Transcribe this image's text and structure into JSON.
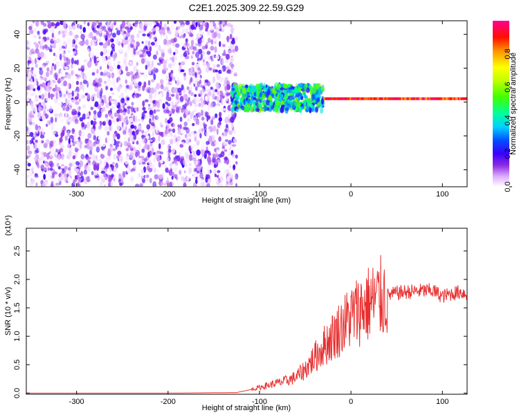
{
  "title": "C2E1.2025.309.22.59.G29",
  "chart_data": [
    {
      "type": "heatmap",
      "xlabel": "Height of straight line (km)",
      "ylabel": "Frequency (Hz)",
      "xlim": [
        -355,
        127
      ],
      "ylim": [
        -50,
        48
      ],
      "x_ticks": [
        -300,
        -200,
        -100,
        0,
        100
      ],
      "y_ticks": [
        -40,
        -20,
        0,
        20,
        40
      ],
      "x_tick_labels": [
        "-300",
        "-200",
        "-100",
        "0",
        "100"
      ],
      "y_tick_labels": [
        "-40",
        "-20",
        "0",
        "20",
        "40"
      ],
      "colorbar": {
        "label": "Normalized spectral amplitude",
        "range": [
          0.0,
          1.0
        ],
        "ticks": [
          0.0,
          0.2,
          0.4,
          0.6,
          0.8
        ],
        "tick_labels": [
          "0.0",
          "0.2",
          "0.4",
          "0.6",
          "0.8"
        ],
        "colors": [
          "#ffffff",
          "#c060ff",
          "#6a00e0",
          "#0000ff",
          "#00d0ff",
          "#00ff80",
          "#80ff00",
          "#ffff00",
          "#ff8000",
          "#ff0000",
          "#ff0080"
        ]
      },
      "regions": [
        {
          "x_range": [
            -355,
            -125
          ],
          "y_range": [
            -50,
            48
          ],
          "amplitude": [
            0.0,
            0.2
          ],
          "description": "noise"
        },
        {
          "x_range": [
            -130,
            -30
          ],
          "y_range": [
            -5,
            10
          ],
          "amplitude": [
            0.2,
            0.6
          ]
        },
        {
          "x_range": [
            -30,
            127
          ],
          "y_center": 2,
          "amplitude": [
            0.8,
            1.0
          ]
        }
      ],
      "grid": false
    },
    {
      "type": "line",
      "xlabel": "Height of straight line (km)",
      "ylabel": "SNR (10 * v/v)",
      "y_multiplier": "(x10⁴)",
      "xlim": [
        -355,
        127
      ],
      "ylim": [
        -0.02,
        2.9
      ],
      "x_ticks": [
        -300,
        -200,
        -100,
        0,
        100
      ],
      "y_ticks": [
        0.0,
        0.5,
        1.0,
        1.5,
        2.0,
        2.5
      ],
      "x_tick_labels": [
        "-300",
        "-200",
        "-100",
        "0",
        "100"
      ],
      "y_tick_labels": [
        "0.0",
        "0.5",
        "1.0",
        "1.5",
        "2.0",
        "2.5"
      ],
      "color": "#e83030",
      "x": [
        -355,
        -300,
        -200,
        -125,
        -110,
        -100,
        -90,
        -80,
        -70,
        -60,
        -50,
        -40,
        -30,
        -20,
        -10,
        0,
        10,
        20,
        30,
        40,
        50,
        60,
        70,
        80,
        90,
        95,
        100,
        110,
        120,
        127
      ],
      "y": [
        0.0,
        0.0,
        0.0,
        0.01,
        0.06,
        0.1,
        0.14,
        0.18,
        0.22,
        0.28,
        0.42,
        0.62,
        0.82,
        1.0,
        1.18,
        1.35,
        1.48,
        1.58,
        1.66,
        1.72,
        1.76,
        1.78,
        1.79,
        1.8,
        1.8,
        1.75,
        1.7,
        1.75,
        1.78,
        1.74
      ],
      "grid": false
    }
  ]
}
